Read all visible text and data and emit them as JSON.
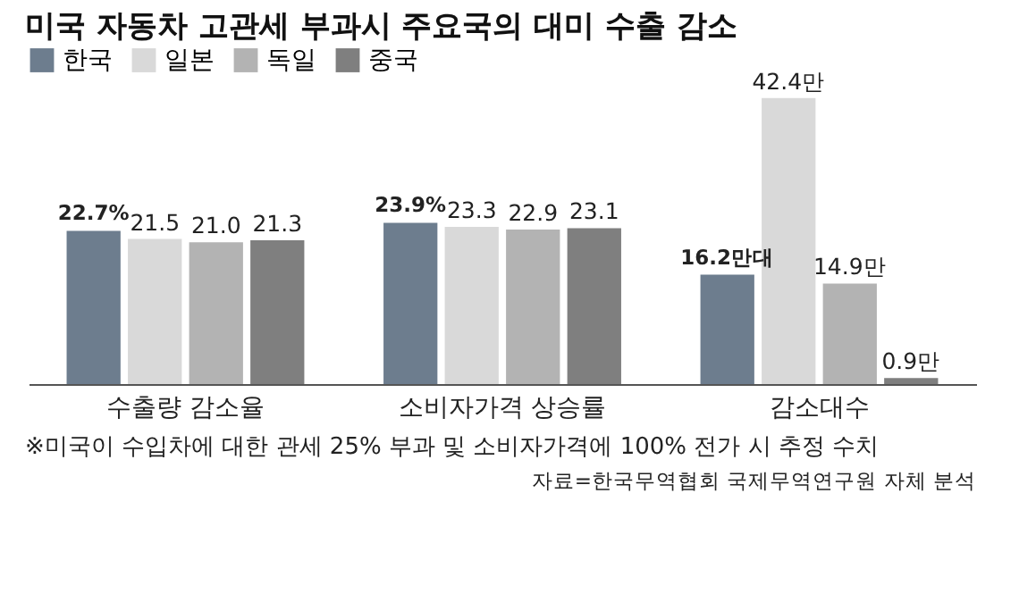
{
  "chart_data": {
    "type": "bar",
    "title": "미국 자동차 고관세 부과시 주요국의 대미 수출 감소",
    "categories": [
      "수출량 감소율",
      "소비자가격 상승률",
      "감소대수"
    ],
    "series": [
      {
        "name": "한국",
        "color": "#6d7d8e",
        "values": [
          22.7,
          23.9,
          16.2
        ],
        "value_labels": [
          "22.7%",
          "23.9%",
          "16.2만대"
        ]
      },
      {
        "name": "일본",
        "color": "#d9d9d9",
        "values": [
          21.5,
          23.3,
          42.4
        ],
        "value_labels": [
          "21.5",
          "23.3",
          "42.4만"
        ]
      },
      {
        "name": "독일",
        "color": "#b3b3b3",
        "values": [
          21.0,
          22.9,
          14.9
        ],
        "value_labels": [
          "21.0",
          "22.9",
          "14.9만"
        ]
      },
      {
        "name": "중국",
        "color": "#7f7f7f",
        "values": [
          21.3,
          23.1,
          0.9
        ],
        "value_labels": [
          "21.3",
          "23.1",
          "0.9만"
        ]
      }
    ],
    "legend": "top left",
    "grid": false,
    "tick_labels": "x",
    "annotations": [
      "※미국이 수입차에 대한 관세 25% 부과 및 소비자가격에 100% 전가 시 추정 수치",
      "자료=한국무역협회 국제무역연구원 자체 분석"
    ]
  }
}
